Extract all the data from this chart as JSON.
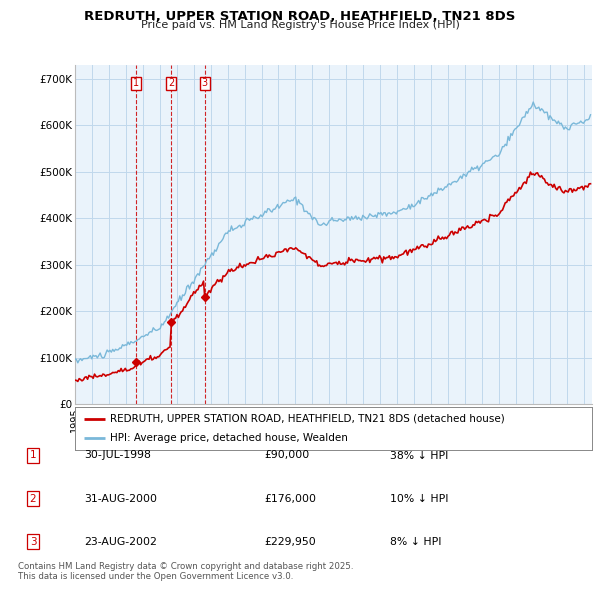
{
  "title": "REDRUTH, UPPER STATION ROAD, HEATHFIELD, TN21 8DS",
  "subtitle": "Price paid vs. HM Land Registry's House Price Index (HPI)",
  "ylim": [
    0,
    730000
  ],
  "yticks": [
    0,
    100000,
    200000,
    300000,
    400000,
    500000,
    600000,
    700000
  ],
  "ytick_labels": [
    "£0",
    "£100K",
    "£200K",
    "£300K",
    "£400K",
    "£500K",
    "£600K",
    "£700K"
  ],
  "xlim_start": 1995.0,
  "xlim_end": 2025.5,
  "legend_line1": "REDRUTH, UPPER STATION ROAD, HEATHFIELD, TN21 8DS (detached house)",
  "legend_line2": "HPI: Average price, detached house, Wealden",
  "transactions": [
    {
      "num": 1,
      "date": "30-JUL-1998",
      "price": 90000,
      "hpi_diff": "38% ↓ HPI",
      "year": 1998.58
    },
    {
      "num": 2,
      "date": "31-AUG-2000",
      "price": 176000,
      "hpi_diff": "10% ↓ HPI",
      "year": 2000.67
    },
    {
      "num": 3,
      "date": "23-AUG-2002",
      "price": 229950,
      "hpi_diff": "8% ↓ HPI",
      "year": 2002.65
    }
  ],
  "footer": "Contains HM Land Registry data © Crown copyright and database right 2025.\nThis data is licensed under the Open Government Licence v3.0.",
  "hpi_color": "#7ab8d9",
  "price_color": "#cc0000",
  "marker_color": "#cc0000",
  "dashed_line_color": "#cc0000",
  "background_color": "#eaf3fb",
  "grid_color": "#c0d8ec"
}
